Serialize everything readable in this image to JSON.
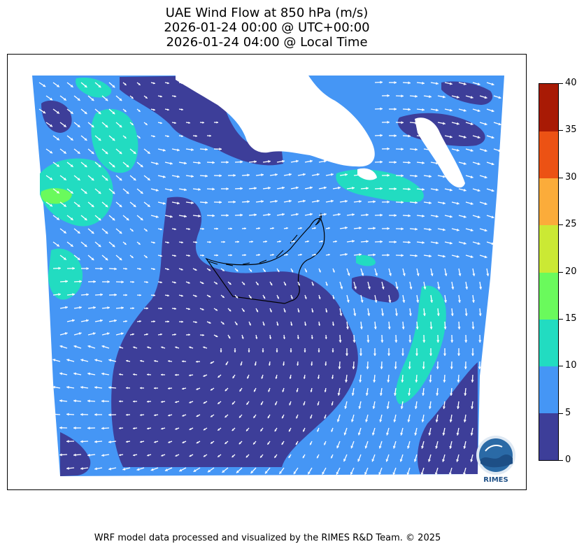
{
  "title": {
    "line1": "UAE Wind Flow at 850 hPa (m/s)",
    "line2": "2026-01-24 00:00 @ UTC+00:00",
    "line3": "2026-01-24 04:00 @ Local Time"
  },
  "colorbar": {
    "unit": "m/s",
    "ticks": [
      "0",
      "5",
      "10",
      "15",
      "20",
      "25",
      "30",
      "35",
      "40"
    ],
    "levels": [
      {
        "min": 0,
        "max": 5,
        "color": "#3d3e99"
      },
      {
        "min": 5,
        "max": 10,
        "color": "#4596f5"
      },
      {
        "min": 10,
        "max": 15,
        "color": "#22dcc1"
      },
      {
        "min": 15,
        "max": 20,
        "color": "#6afa5c"
      },
      {
        "min": 20,
        "max": 25,
        "color": "#cbe934"
      },
      {
        "min": 25,
        "max": 30,
        "color": "#fbac3a"
      },
      {
        "min": 30,
        "max": 35,
        "color": "#ec5214"
      },
      {
        "min": 35,
        "max": 40,
        "color": "#a81a05"
      }
    ]
  },
  "map": {
    "region": "UAE",
    "vector_color": "#ffffff",
    "border_color": "#000000"
  },
  "logo": {
    "text": "RIMES",
    "icon": "rimes-logo-icon"
  },
  "footer": {
    "credit": "WRF model data processed and visualized by the RIMES R&D Team. © 2025"
  }
}
